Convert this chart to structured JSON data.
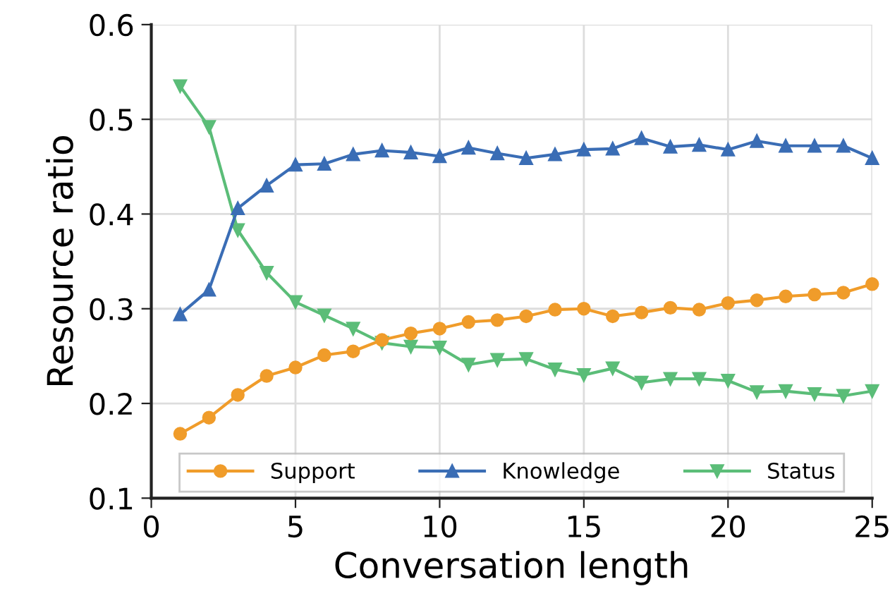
{
  "chart_data": {
    "type": "line",
    "xlabel": "Conversation length",
    "ylabel": "Resource ratio",
    "x": [
      1,
      2,
      3,
      4,
      5,
      6,
      7,
      8,
      9,
      10,
      11,
      12,
      13,
      14,
      15,
      16,
      17,
      18,
      19,
      20,
      21,
      22,
      23,
      24,
      25
    ],
    "series": [
      {
        "name": "Support",
        "color": "#f09c2a",
        "marker": "circle",
        "values": [
          0.168,
          0.185,
          0.209,
          0.229,
          0.238,
          0.251,
          0.255,
          0.267,
          0.274,
          0.279,
          0.286,
          0.288,
          0.292,
          0.299,
          0.3,
          0.292,
          0.296,
          0.301,
          0.299,
          0.306,
          0.309,
          0.313,
          0.315,
          0.317,
          0.326
        ]
      },
      {
        "name": "Knowledge",
        "color": "#3a6db5",
        "marker": "triangle",
        "values": [
          0.294,
          0.32,
          0.406,
          0.43,
          0.452,
          0.453,
          0.463,
          0.467,
          0.465,
          0.461,
          0.47,
          0.464,
          0.459,
          0.463,
          0.468,
          0.469,
          0.48,
          0.471,
          0.473,
          0.468,
          0.477,
          0.472,
          0.472,
          0.472,
          0.459
        ]
      },
      {
        "name": "Status",
        "color": "#5bbd78",
        "marker": "triangle_down",
        "values": [
          0.535,
          0.492,
          0.383,
          0.338,
          0.307,
          0.293,
          0.279,
          0.264,
          0.26,
          0.259,
          0.241,
          0.246,
          0.247,
          0.236,
          0.23,
          0.237,
          0.222,
          0.226,
          0.226,
          0.224,
          0.212,
          0.213,
          0.21,
          0.208,
          0.213
        ]
      }
    ],
    "xlim": [
      0,
      25
    ],
    "xticks": [
      0,
      5,
      10,
      15,
      20,
      25
    ],
    "ylim": [
      0.1,
      0.6
    ],
    "yticks": [
      0.1,
      0.2,
      0.3,
      0.4,
      0.5,
      0.6
    ],
    "grid": true,
    "legend": "bottom",
    "line_style": "solid"
  }
}
